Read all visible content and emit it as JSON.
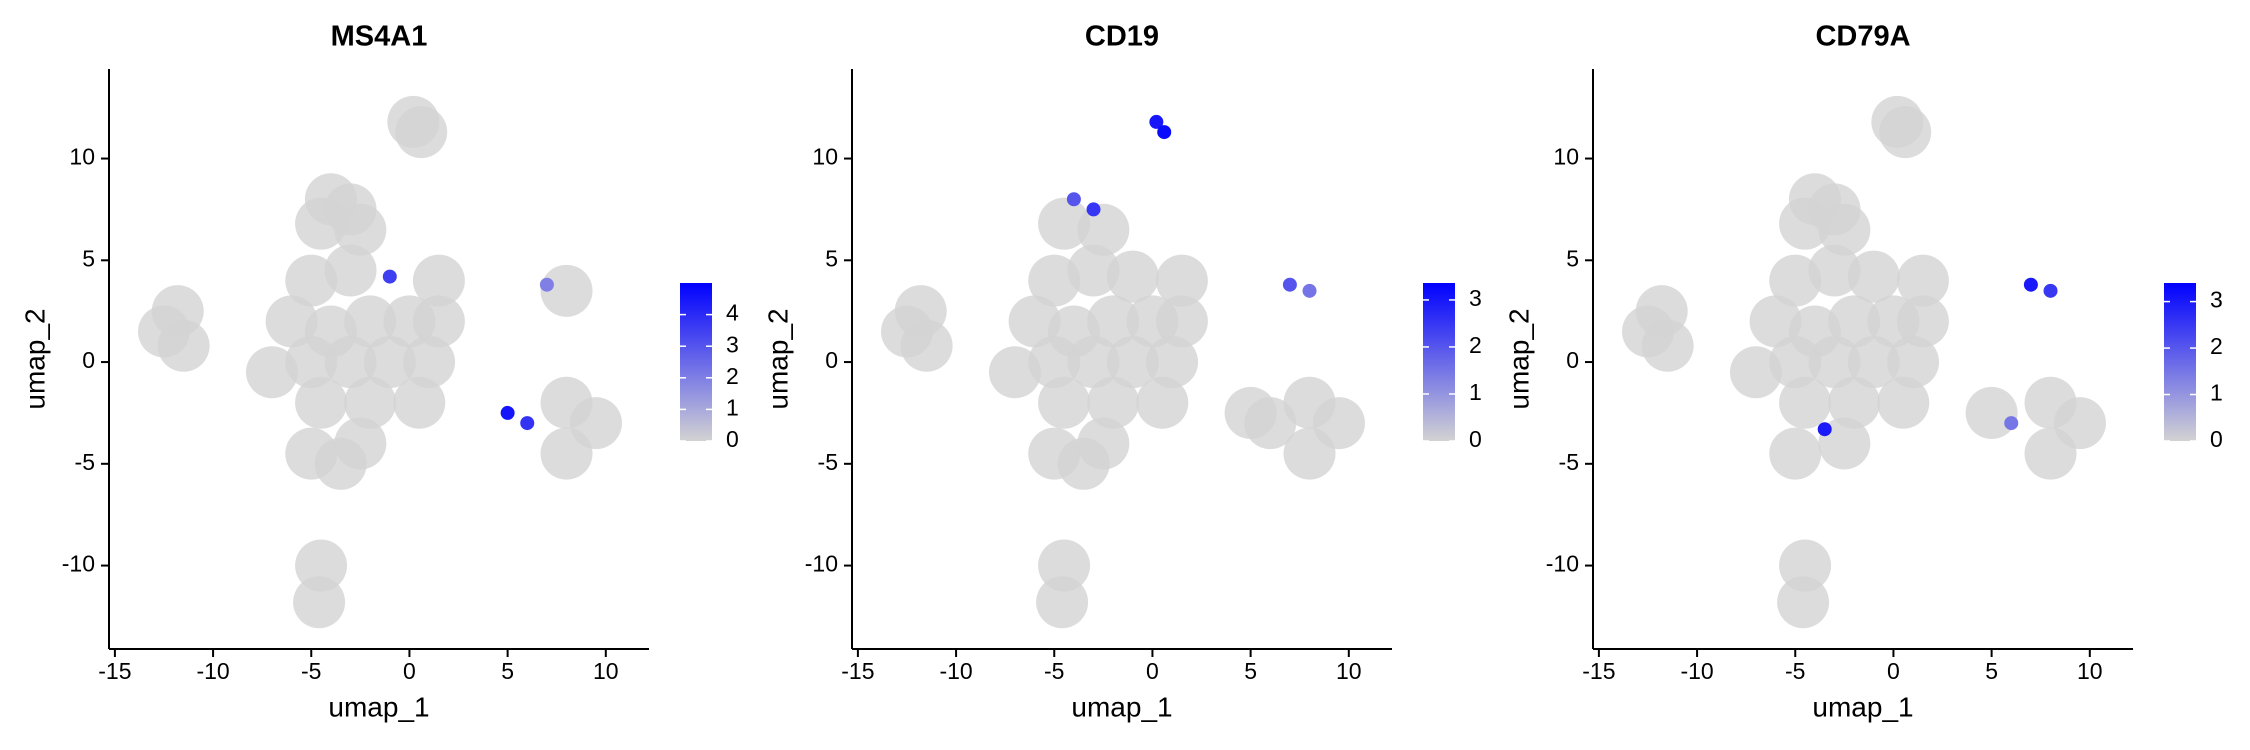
{
  "chart_data": [
    {
      "type": "scatter",
      "title": "MS4A1",
      "x_label": "umap_1",
      "y_label": "umap_2",
      "xlim": [
        -15.3,
        12.2
      ],
      "ylim": [
        -14.1,
        14.4
      ],
      "xticks": [
        -15,
        -10,
        -5,
        0,
        5,
        10
      ],
      "yticks": [
        -10,
        -5,
        0,
        5,
        10
      ],
      "low_color": "#d3d3d3",
      "high_color": "#0000ff",
      "color_lim": [
        0,
        5
      ],
      "color_ticks": [
        0,
        1,
        2,
        3,
        4
      ],
      "x": [
        0.2,
        0.6,
        -4,
        -3,
        -2.5,
        -4.5,
        -5,
        -3,
        1.5,
        -6,
        -4,
        -2,
        0,
        1.5,
        -7,
        -5,
        -3,
        -1,
        1,
        -4.5,
        -2,
        0.5,
        -5,
        -3.5,
        -2.5,
        -12.5,
        -11.8,
        -11.5,
        8,
        8,
        9.5,
        8,
        -4.5,
        -4.6,
        -1,
        7,
        5,
        6
      ],
      "values": [
        11.8,
        11.3,
        8,
        7.5,
        6.5,
        6.8,
        4,
        4.5,
        4,
        2,
        1.5,
        2,
        2,
        2,
        -0.5,
        0,
        0,
        0,
        0,
        -2,
        -2,
        -2,
        -4.5,
        -5,
        -4,
        1.5,
        2.5,
        0.8,
        3.5,
        -2,
        -3,
        -4.5,
        -10,
        -11.8,
        4.2,
        3.8,
        -2.5,
        -3
      ],
      "expression": [
        0,
        0,
        0,
        0,
        0,
        0,
        0,
        0,
        0,
        0,
        0,
        0,
        0,
        0,
        0,
        0,
        0,
        0,
        0,
        0,
        0,
        0,
        0,
        0,
        0,
        0,
        0,
        0,
        0,
        0,
        0,
        0,
        0,
        0,
        3.5,
        2,
        4.5,
        3.8
      ]
    },
    {
      "type": "scatter",
      "title": "CD19",
      "x_label": "umap_1",
      "y_label": "umap_2",
      "xlim": [
        -15.3,
        12.2
      ],
      "ylim": [
        -14.1,
        14.4
      ],
      "xticks": [
        -15,
        -10,
        -5,
        0,
        5,
        10
      ],
      "yticks": [
        -10,
        -5,
        0,
        5,
        10
      ],
      "low_color": "#d3d3d3",
      "high_color": "#0000ff",
      "color_lim": [
        0,
        3.36
      ],
      "color_ticks": [
        0,
        1,
        2,
        3
      ],
      "x": [
        -5,
        -3,
        -1,
        1.5,
        -6,
        -4,
        -2,
        0,
        1.5,
        -7,
        -5,
        -3,
        -1,
        1,
        -4.5,
        -2,
        0.5,
        -5,
        -3.5,
        -2.5,
        -12.5,
        -11.8,
        -11.5,
        6,
        8,
        9.5,
        8,
        5,
        -4.5,
        -4.6,
        -2.5,
        -4.5,
        8,
        7,
        -4,
        -3,
        0.2,
        0.6
      ],
      "values": [
        4,
        4.5,
        4.2,
        4,
        2,
        1.5,
        2,
        2,
        2,
        -0.5,
        0,
        0,
        0,
        0,
        -2,
        -2,
        -2,
        -4.5,
        -5,
        -4,
        1.5,
        2.5,
        0.8,
        -3,
        -2,
        -3,
        -4.5,
        -2.5,
        -10,
        -11.8,
        6.5,
        6.8,
        3.5,
        3.8,
        8,
        7.5,
        11.8,
        11.3
      ],
      "expression": [
        0,
        0,
        0,
        0,
        0,
        0,
        0,
        0,
        0,
        0,
        0,
        0,
        0,
        0,
        0,
        0,
        0,
        0,
        0,
        0,
        0,
        0,
        0,
        0,
        0,
        0,
        0,
        0,
        0,
        0,
        0,
        0,
        1.5,
        2,
        2,
        2.5,
        3,
        3.2
      ]
    },
    {
      "type": "scatter",
      "title": "CD79A",
      "x_label": "umap_1",
      "y_label": "umap_2",
      "xlim": [
        -15.3,
        12.2
      ],
      "ylim": [
        -14.1,
        14.4
      ],
      "xticks": [
        -15,
        -10,
        -5,
        0,
        5,
        10
      ],
      "yticks": [
        -10,
        -5,
        0,
        5,
        10
      ],
      "low_color": "#d3d3d3",
      "high_color": "#0000ff",
      "color_lim": [
        0,
        3.4
      ],
      "color_ticks": [
        0,
        1,
        2,
        3
      ],
      "x": [
        0.2,
        0.6,
        -4,
        -3,
        -2.5,
        -4.5,
        -5,
        -3,
        -1,
        1.5,
        -6,
        -4,
        -2,
        0,
        1.5,
        -7,
        -5,
        -3,
        -1,
        1,
        -4.5,
        -2,
        0.5,
        -5,
        -2.5,
        -12.5,
        -11.8,
        -11.5,
        8,
        9.5,
        8,
        5,
        -4.5,
        -4.6,
        6,
        -3.5,
        8,
        7
      ],
      "values": [
        11.8,
        11.3,
        8,
        7.5,
        6.5,
        6.8,
        4,
        4.5,
        4.2,
        4,
        2,
        1.5,
        2,
        2,
        2,
        -0.5,
        0,
        0,
        0,
        0,
        -2,
        -2,
        -2,
        -4.5,
        -4,
        1.5,
        2.5,
        0.8,
        -2,
        -3,
        -4.5,
        -2.5,
        -10,
        -11.8,
        -3,
        -3.3,
        3.5,
        3.8
      ],
      "expression": [
        0,
        0,
        0,
        0,
        0,
        0,
        0,
        0,
        0,
        0,
        0,
        0,
        0,
        0,
        0,
        0,
        0,
        0,
        0,
        0,
        0,
        0,
        0,
        0,
        0,
        0,
        0,
        0,
        0,
        0,
        0,
        0,
        0,
        0,
        1.5,
        3,
        2.5,
        3
      ]
    }
  ]
}
